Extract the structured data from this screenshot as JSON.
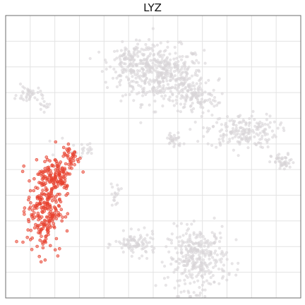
{
  "chart_data": {
    "type": "scatter",
    "title": "LYZ",
    "xlabel": "",
    "ylabel": "",
    "xlim": [
      0,
      100
    ],
    "ylim": [
      0,
      100
    ],
    "grid": true,
    "legend": "none",
    "colors": {
      "background_cells": "#d9d5d8",
      "expressing_cells": "#e8412f",
      "grid": "#e3e3e3",
      "frame": "#6e6e6e"
    },
    "series": [
      {
        "role": "non-expressing cells",
        "color": "#d9d5d8",
        "clusters": [
          {
            "center": [
              53,
              79
            ],
            "spread": [
              7,
              5
            ],
            "count": 420
          },
          {
            "center": [
              43,
              84
            ],
            "spread": [
              4,
              3
            ],
            "count": 120
          },
          {
            "center": [
              64,
              71
            ],
            "spread": [
              4,
              3
            ],
            "count": 110
          },
          {
            "center": [
              80,
              59
            ],
            "spread": [
              6,
              3
            ],
            "count": 190
          },
          {
            "center": [
              94,
              48
            ],
            "spread": [
              2,
              1.5
            ],
            "count": 45
          },
          {
            "center": [
              57,
              56
            ],
            "spread": [
              1.5,
              1.5
            ],
            "count": 30
          },
          {
            "center": [
              65,
              14
            ],
            "spread": [
              5,
              5.5
            ],
            "count": 330
          },
          {
            "center": [
              44,
              19
            ],
            "spread": [
              3.5,
              2
            ],
            "count": 90
          },
          {
            "center": [
              8,
              72
            ],
            "spread": [
              2,
              1.5
            ],
            "count": 40
          },
          {
            "center": [
              13,
              68
            ],
            "spread": [
              1,
              1
            ],
            "count": 12
          },
          {
            "center": [
              37,
              37
            ],
            "spread": [
              1,
              2
            ],
            "count": 18
          },
          {
            "center": [
              28,
              53
            ],
            "spread": [
              1.5,
              1.2
            ],
            "count": 12
          },
          {
            "center": [
              24,
              53
            ],
            "spread": [
              3,
              2
            ],
            "count": 10
          }
        ]
      },
      {
        "role": "expressing cells",
        "color": "#e8412f",
        "clusters": [
          {
            "center": [
              13,
              32
            ],
            "spread": [
              2.8,
              8
            ],
            "count": 260
          },
          {
            "center": [
              18,
              43
            ],
            "spread": [
              2.2,
              3.5
            ],
            "count": 90
          },
          {
            "center": [
              22,
              50
            ],
            "spread": [
              1.5,
              2.5
            ],
            "count": 40
          }
        ]
      }
    ]
  }
}
